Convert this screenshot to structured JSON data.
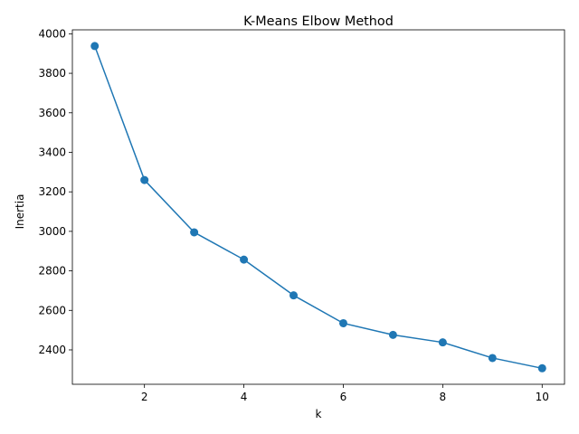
{
  "chart_data": {
    "type": "line",
    "title": "K-Means Elbow Method",
    "xlabel": "k",
    "ylabel": "Inertia",
    "x": [
      1,
      2,
      3,
      4,
      5,
      6,
      7,
      8,
      9,
      10
    ],
    "series": [
      {
        "values": [
          3938,
          3260,
          2995,
          2857,
          2676,
          2535,
          2476,
          2438,
          2359,
          2307
        ],
        "color": "#1f77b4",
        "marker": "circle"
      }
    ],
    "xlim": [
      0.55,
      10.45
    ],
    "ylim": [
      2226,
      4020
    ],
    "xticks": [
      2,
      4,
      6,
      8,
      10
    ],
    "yticks": [
      2400,
      2600,
      2800,
      3000,
      3200,
      3400,
      3600,
      3800,
      4000
    ],
    "grid": false,
    "legend": "none"
  }
}
